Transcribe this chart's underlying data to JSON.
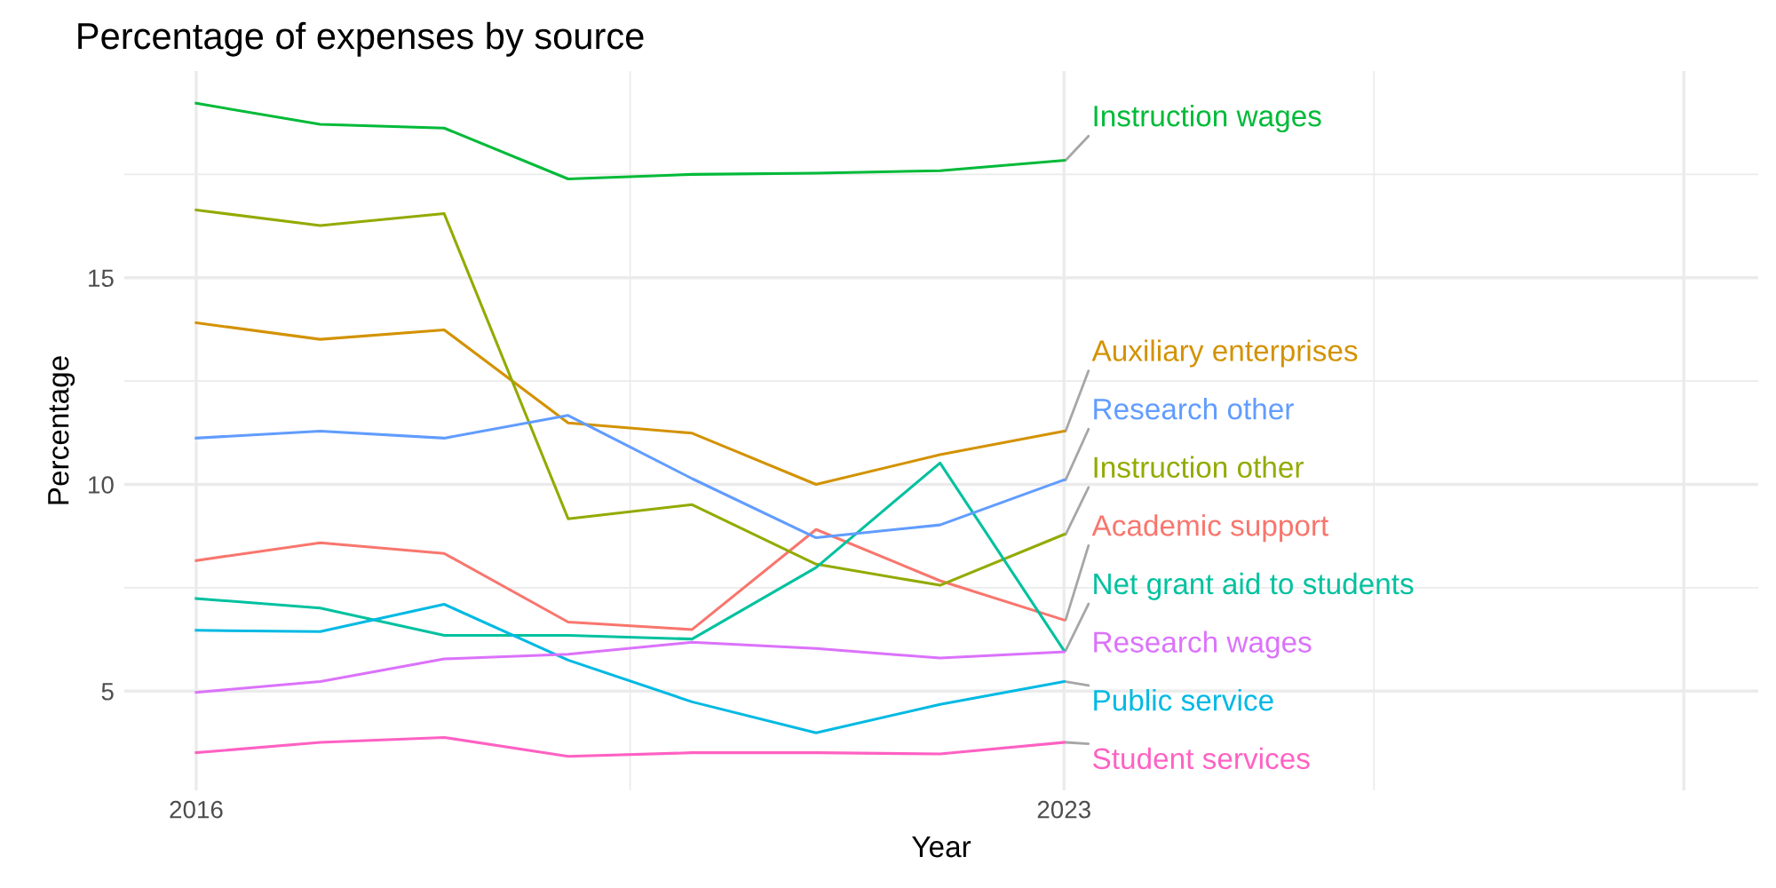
{
  "chart_data": {
    "type": "line",
    "title": "Percentage of expenses by source",
    "xlabel": "Year",
    "ylabel": "Percentage",
    "x": [
      2016,
      2017,
      2018,
      2019,
      2020,
      2021,
      2022,
      2023
    ],
    "series": [
      {
        "name": "Academic support",
        "color": "#f8766d",
        "values": [
          8.16,
          8.59,
          8.33,
          6.67,
          6.49,
          8.91,
          7.67,
          6.72
        ]
      },
      {
        "name": "Auxiliary enterprises",
        "color": "#d39200",
        "values": [
          13.91,
          13.51,
          13.74,
          11.49,
          11.24,
          10.0,
          10.72,
          11.29
        ]
      },
      {
        "name": "Instruction other",
        "color": "#93aa00",
        "values": [
          16.64,
          16.26,
          16.55,
          9.17,
          9.51,
          8.07,
          7.56,
          8.79
        ]
      },
      {
        "name": "Instruction wages",
        "color": "#00ba38",
        "values": [
          19.22,
          18.71,
          18.62,
          17.39,
          17.5,
          17.53,
          17.59,
          17.84
        ]
      },
      {
        "name": "Net grant aid to students",
        "color": "#00c19f",
        "values": [
          7.24,
          7.01,
          6.35,
          6.35,
          6.26,
          7.99,
          10.52,
          5.98
        ]
      },
      {
        "name": "Public service",
        "color": "#00b9e3",
        "values": [
          6.47,
          6.44,
          7.1,
          5.75,
          4.74,
          3.99,
          4.68,
          5.23
        ]
      },
      {
        "name": "Research other",
        "color": "#619cff",
        "values": [
          11.12,
          11.29,
          11.12,
          11.67,
          10.14,
          8.71,
          9.02,
          10.11
        ]
      },
      {
        "name": "Research wages",
        "color": "#db72fb",
        "values": [
          4.97,
          5.23,
          5.78,
          5.89,
          6.18,
          6.03,
          5.8,
          5.95
        ]
      },
      {
        "name": "Student services",
        "color": "#ff61c3",
        "values": [
          3.51,
          3.76,
          3.88,
          3.42,
          3.51,
          3.51,
          3.48,
          3.76
        ]
      }
    ],
    "xlim": [
      2015.42,
      2028.6
    ],
    "xticks": [
      2016,
      2023,
      {
        "value": 2028,
        "label": null
      }
    ],
    "ylim": [
      2.6,
      20.0
    ],
    "yticks": [
      5,
      10,
      15
    ],
    "grid": true,
    "legend": false,
    "marker": "none",
    "line_style": "solid"
  }
}
